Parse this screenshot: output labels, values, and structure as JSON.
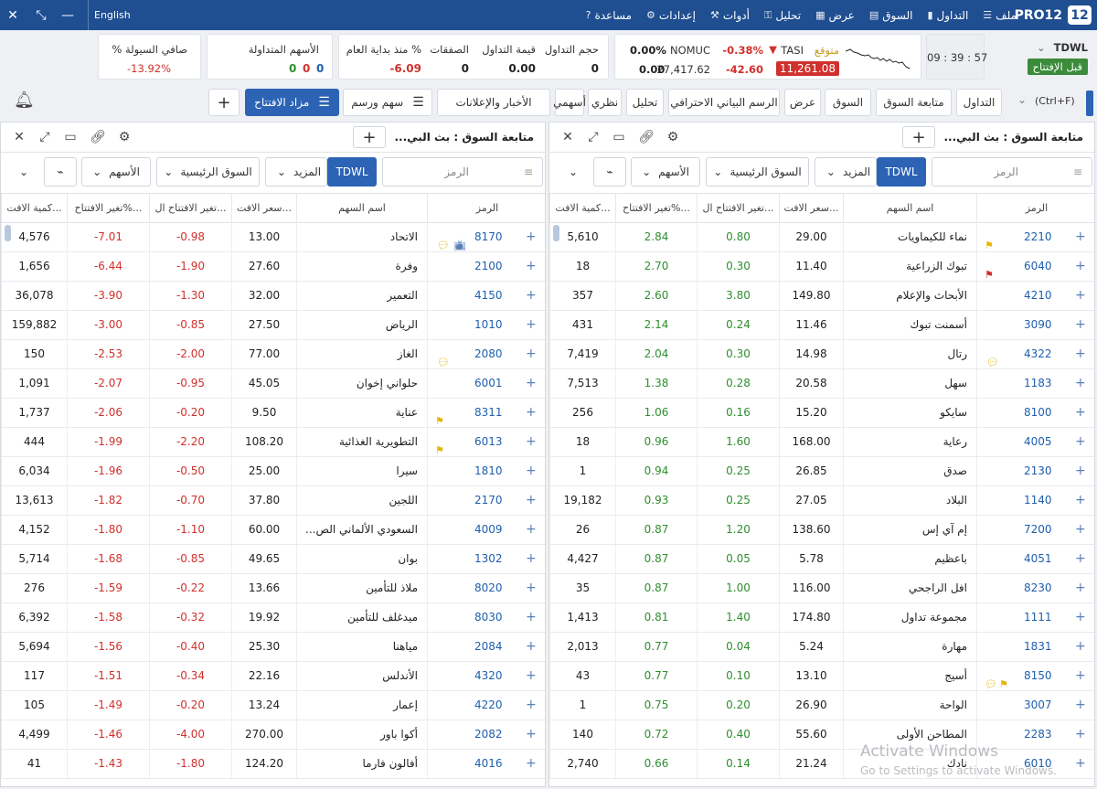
{
  "colors": {
    "accent": "#1f4e91",
    "positive": "#2f8f2f",
    "negative": "#d0312d",
    "button_blue": "#2c63b5"
  },
  "topbar": {
    "language": "English",
    "brand": "PRO12",
    "brand_badge": "12",
    "menu": [
      {
        "label": "ملف",
        "icon": "hamburger-icon"
      },
      {
        "label": "التداول",
        "icon": "bars-icon"
      },
      {
        "label": "السوق",
        "icon": "chart-icon"
      },
      {
        "label": "عرض",
        "icon": "document-icon"
      },
      {
        "label": "تحليل",
        "icon": "lock-icon"
      },
      {
        "label": "أدوات",
        "icon": "wrench-icon"
      },
      {
        "label": "إعدادات",
        "icon": "gear-icon"
      },
      {
        "label": "مساعدة",
        "icon": "help-icon"
      }
    ]
  },
  "infobar": {
    "market_code": "TDWL",
    "session_status": "قبل الإفتتاح",
    "clock": "09 : 39 : 57",
    "tasi_label": "TASI",
    "tasi_status": "متوقع",
    "tasi_change_pct": "-0.38%",
    "tasi_change": "-42.60",
    "tasi_value": "11,261.08",
    "nomuc_label": "NOMUC",
    "nomuc_change_pct": "0.00%",
    "nomuc_change": "0.00",
    "nomuc_value": "27,417.62",
    "volume_label": "حجم التداول",
    "volume_value": "0",
    "turnover_label": "قيمة التداول",
    "turnover_value": "0.00",
    "trades_label": "الصفقات",
    "trades_value": "0",
    "ytd_label": "% منذ بداية العام",
    "ytd_value": "-6.09",
    "traded_stocks_label": "الأسهم المتداولة",
    "traded_up": "0",
    "traded_down": "0",
    "traded_flat": "0",
    "net_liquidity_label": "صافي السيولة %",
    "net_liquidity_value": "-13.92%"
  },
  "toolbar": {
    "hint": "(Ctrl+F)",
    "buttons": [
      "التداول",
      "متابعة السوق",
      "السوق",
      "عرض",
      "الرسم البياني الاحترافي",
      "تحليل",
      "نظري",
      "أسهمي",
      "الأخبار والإعلانات",
      "سهم ورسم",
      "مزاد الافتتاح"
    ],
    "add": "+"
  },
  "panel": {
    "title": "متابعة السوق : بث البي...",
    "symbol_placeholder": "الرمز",
    "market": "TDWL",
    "more": "المزيد",
    "main_market": "السوق الرئيسية",
    "stocks": "الأسهم",
    "columns": [
      "الرمز",
      "اسم السهم",
      "سعر الافت...",
      "تغير الافتتاح ال...",
      "تغير الافتتاح%...",
      "كمية الافت..."
    ]
  },
  "right_panel_rows": [
    {
      "sym": "2210",
      "name": "نماء للكيماويات",
      "price": "29.00",
      "chg": "0.80",
      "pct": "2.84",
      "qty": "5,610",
      "flag": "yellow"
    },
    {
      "sym": "6040",
      "name": "تبوك الزراعية",
      "price": "11.40",
      "chg": "0.30",
      "pct": "2.70",
      "qty": "18",
      "flag": "red"
    },
    {
      "sym": "4210",
      "name": "الأبحاث والإعلام",
      "price": "149.80",
      "chg": "3.80",
      "pct": "2.60",
      "qty": "357",
      "flag": ""
    },
    {
      "sym": "3090",
      "name": "أسمنت تبوك",
      "price": "11.46",
      "chg": "0.24",
      "pct": "2.14",
      "qty": "431",
      "flag": ""
    },
    {
      "sym": "4322",
      "name": "رتال",
      "price": "14.98",
      "chg": "0.30",
      "pct": "2.04",
      "qty": "7,419",
      "flag": "bubble"
    },
    {
      "sym": "1183",
      "name": "سهل",
      "price": "20.58",
      "chg": "0.28",
      "pct": "1.38",
      "qty": "7,513",
      "flag": ""
    },
    {
      "sym": "8100",
      "name": "سايكو",
      "price": "15.20",
      "chg": "0.16",
      "pct": "1.06",
      "qty": "256",
      "flag": ""
    },
    {
      "sym": "4005",
      "name": "رعاية",
      "price": "168.00",
      "chg": "1.60",
      "pct": "0.96",
      "qty": "18",
      "flag": ""
    },
    {
      "sym": "2130",
      "name": "صدق",
      "price": "26.85",
      "chg": "0.25",
      "pct": "0.94",
      "qty": "1",
      "flag": ""
    },
    {
      "sym": "1140",
      "name": "البلاد",
      "price": "27.05",
      "chg": "0.25",
      "pct": "0.93",
      "qty": "19,182",
      "flag": ""
    },
    {
      "sym": "7200",
      "name": "إم آي إس",
      "price": "138.60",
      "chg": "1.20",
      "pct": "0.87",
      "qty": "26",
      "flag": ""
    },
    {
      "sym": "4051",
      "name": "باعظيم",
      "price": "5.78",
      "chg": "0.05",
      "pct": "0.87",
      "qty": "4,427",
      "flag": ""
    },
    {
      "sym": "8230",
      "name": "افل الراجحي",
      "price": "116.00",
      "chg": "1.00",
      "pct": "0.87",
      "qty": "35",
      "flag": ""
    },
    {
      "sym": "1111",
      "name": "مجموعة تداول",
      "price": "174.80",
      "chg": "1.40",
      "pct": "0.81",
      "qty": "1,413",
      "flag": ""
    },
    {
      "sym": "1831",
      "name": "مهارة",
      "price": "5.24",
      "chg": "0.04",
      "pct": "0.77",
      "qty": "2,013",
      "flag": ""
    },
    {
      "sym": "8150",
      "name": "أسيج",
      "price": "13.10",
      "chg": "0.10",
      "pct": "0.77",
      "qty": "43",
      "flag": "yellow-bubble"
    },
    {
      "sym": "3007",
      "name": "الواحة",
      "price": "26.90",
      "chg": "0.20",
      "pct": "0.75",
      "qty": "1",
      "flag": ""
    },
    {
      "sym": "2283",
      "name": "المطاحن الأولى",
      "price": "55.60",
      "chg": "0.40",
      "pct": "0.72",
      "qty": "140",
      "flag": ""
    },
    {
      "sym": "6010",
      "name": "نادك",
      "price": "21.24",
      "chg": "0.14",
      "pct": "0.66",
      "qty": "2,740",
      "flag": ""
    }
  ],
  "left_panel_rows": [
    {
      "sym": "8170",
      "name": "الاتحاد",
      "price": "13.00",
      "chg": "-0.98",
      "pct": "-7.01",
      "qty": "4,576",
      "flag": "bubble-tv"
    },
    {
      "sym": "2100",
      "name": "وفرة",
      "price": "27.60",
      "chg": "-1.90",
      "pct": "-6.44",
      "qty": "1,656",
      "flag": ""
    },
    {
      "sym": "4150",
      "name": "التعمير",
      "price": "32.00",
      "chg": "-1.30",
      "pct": "-3.90",
      "qty": "36,078",
      "flag": ""
    },
    {
      "sym": "1010",
      "name": "الرياض",
      "price": "27.50",
      "chg": "-0.85",
      "pct": "-3.00",
      "qty": "159,882",
      "flag": ""
    },
    {
      "sym": "2080",
      "name": "الغاز",
      "price": "77.00",
      "chg": "-2.00",
      "pct": "-2.53",
      "qty": "150",
      "flag": "bubble"
    },
    {
      "sym": "6001",
      "name": "حلواني إخوان",
      "price": "45.05",
      "chg": "-0.95",
      "pct": "-2.07",
      "qty": "1,091",
      "flag": ""
    },
    {
      "sym": "8311",
      "name": "عناية",
      "price": "9.50",
      "chg": "-0.20",
      "pct": "-2.06",
      "qty": "1,737",
      "flag": "yellow"
    },
    {
      "sym": "6013",
      "name": "التطويرية الغذائية",
      "price": "108.20",
      "chg": "-2.20",
      "pct": "-1.99",
      "qty": "444",
      "flag": "yellow"
    },
    {
      "sym": "1810",
      "name": "سيرا",
      "price": "25.00",
      "chg": "-0.50",
      "pct": "-1.96",
      "qty": "6,034",
      "flag": ""
    },
    {
      "sym": "2170",
      "name": "اللجين",
      "price": "37.80",
      "chg": "-0.70",
      "pct": "-1.82",
      "qty": "13,613",
      "flag": ""
    },
    {
      "sym": "4009",
      "name": "السعودي الألماني الص...",
      "price": "60.00",
      "chg": "-1.10",
      "pct": "-1.80",
      "qty": "4,152",
      "flag": ""
    },
    {
      "sym": "1302",
      "name": "بوان",
      "price": "49.65",
      "chg": "-0.85",
      "pct": "-1.68",
      "qty": "5,714",
      "flag": ""
    },
    {
      "sym": "8020",
      "name": "ملاذ للتأمين",
      "price": "13.66",
      "chg": "-0.22",
      "pct": "-1.59",
      "qty": "276",
      "flag": ""
    },
    {
      "sym": "8030",
      "name": "ميدغلف للتأمين",
      "price": "19.92",
      "chg": "-0.32",
      "pct": "-1.58",
      "qty": "6,392",
      "flag": ""
    },
    {
      "sym": "2084",
      "name": "مياهنا",
      "price": "25.30",
      "chg": "-0.40",
      "pct": "-1.56",
      "qty": "5,694",
      "flag": ""
    },
    {
      "sym": "4320",
      "name": "الأندلس",
      "price": "22.16",
      "chg": "-0.34",
      "pct": "-1.51",
      "qty": "117",
      "flag": ""
    },
    {
      "sym": "4220",
      "name": "إعمار",
      "price": "13.24",
      "chg": "-0.20",
      "pct": "-1.49",
      "qty": "105",
      "flag": ""
    },
    {
      "sym": "2082",
      "name": "أكوا باور",
      "price": "270.00",
      "chg": "-4.00",
      "pct": "-1.46",
      "qty": "4,499",
      "flag": ""
    },
    {
      "sym": "4016",
      "name": "أفالون فارما",
      "price": "124.20",
      "chg": "-1.80",
      "pct": "-1.43",
      "qty": "41",
      "flag": ""
    }
  ],
  "watermark": {
    "line1": "Activate Windows",
    "line2": "Go to Settings to activate Windows."
  }
}
